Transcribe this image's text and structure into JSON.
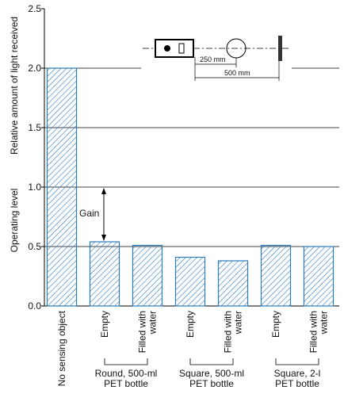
{
  "chart_data": {
    "type": "bar",
    "y_label_lower": "Operating level",
    "y_label_upper": "Relative amount of light received",
    "categories": [
      [
        "No sensing object"
      ],
      [
        "Empty"
      ],
      [
        "Filled with",
        "water"
      ],
      [
        "Empty"
      ],
      [
        "Filled with",
        "water"
      ],
      [
        "Empty"
      ],
      [
        "Filled with",
        "water"
      ]
    ],
    "groups": [
      [
        "Round, 500-ml",
        "PET bottle"
      ],
      [
        "Square, 500-ml",
        "PET bottle"
      ],
      [
        "Square, 2-l",
        "PET bottle"
      ]
    ],
    "values": [
      2.0,
      0.54,
      0.51,
      0.41,
      0.38,
      0.51,
      0.5
    ],
    "color": "#2b7bbf",
    "ylim": [
      0,
      2.5
    ],
    "yticks": [
      {
        "value": 0,
        "label": "0.0"
      },
      {
        "value": 0.5,
        "label": "0.5"
      },
      {
        "value": 1,
        "label": "1.0"
      },
      {
        "value": 1.5,
        "label": "1.5"
      },
      {
        "value": 2,
        "label": "2.0"
      },
      {
        "value": 2.5,
        "label": "2.5"
      }
    ],
    "grid": true,
    "annotation": "Gain",
    "diagram_labels": [
      "250 mm",
      "500 mm"
    ]
  }
}
